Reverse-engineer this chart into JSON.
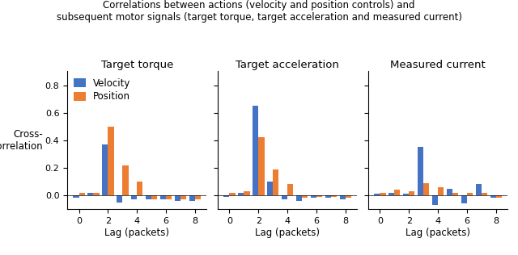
{
  "title": "Correlations between actions (velocity and position controls) and\nsubsequent motor signals (target torque, target acceleration and measured current)",
  "subtitles": [
    "Target torque",
    "Target acceleration",
    "Measured current"
  ],
  "xlabel": "Lag (packets)",
  "ylabel": "Cross-\ncorrelation",
  "lags": [
    0,
    1,
    2,
    3,
    4,
    5,
    6,
    7,
    8
  ],
  "velocity": {
    "torque": [
      -0.02,
      0.02,
      0.37,
      -0.05,
      -0.03,
      -0.03,
      -0.03,
      -0.04,
      -0.04
    ],
    "acceleration": [
      -0.01,
      0.02,
      0.65,
      0.1,
      -0.03,
      -0.04,
      -0.02,
      -0.02,
      -0.03
    ],
    "current": [
      0.01,
      0.02,
      0.01,
      0.35,
      -0.07,
      0.05,
      -0.06,
      0.08,
      -0.02
    ]
  },
  "position": {
    "torque": [
      0.02,
      0.02,
      0.5,
      0.22,
      0.1,
      -0.03,
      -0.03,
      -0.03,
      -0.03
    ],
    "acceleration": [
      0.02,
      0.03,
      0.42,
      0.19,
      0.08,
      -0.02,
      -0.01,
      -0.01,
      -0.02
    ],
    "current": [
      0.02,
      0.04,
      0.03,
      0.09,
      0.06,
      0.02,
      0.02,
      0.02,
      -0.02
    ]
  },
  "color_velocity": "#4472c4",
  "color_position": "#ed7d31",
  "ylim": [
    -0.1,
    0.9
  ],
  "yticks": [
    0.0,
    0.2,
    0.4,
    0.6,
    0.8
  ],
  "bar_width": 0.4,
  "legend_labels": [
    "Velocity",
    "Position"
  ],
  "title_fontsize": 8.5,
  "subtitle_fontsize": 9.5,
  "label_fontsize": 8.5,
  "tick_fontsize": 8,
  "legend_fontsize": 8.5
}
